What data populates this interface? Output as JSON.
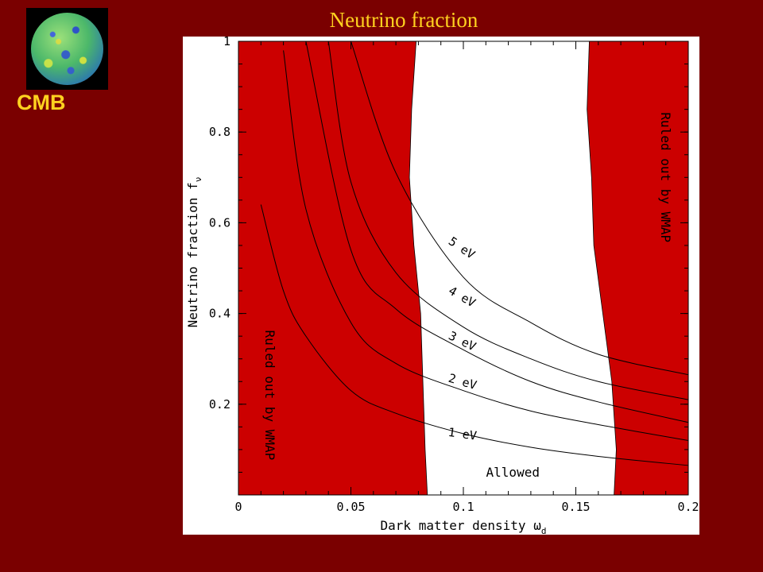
{
  "slide": {
    "title": "Neutrino fraction",
    "thumbnail_label": "CMB"
  },
  "colors": {
    "background": "#7a0000",
    "ruled_out_fill": "#cc0000",
    "title_text": "#ffd21f"
  },
  "chart_data": {
    "type": "line",
    "title": "",
    "xlabel": "Dark matter density ω",
    "xlabel_sub": "d",
    "ylabel": "Neutrino fraction f",
    "ylabel_sub": "ν",
    "xlim": [
      0,
      0.2
    ],
    "ylim": [
      0,
      1
    ],
    "x_ticks": [
      0,
      0.05,
      0.1,
      0.15,
      0.2
    ],
    "x_tick_labels": [
      "0",
      "0.05",
      "0.1",
      "0.15",
      "0.2"
    ],
    "y_ticks": [
      0.2,
      0.4,
      0.6,
      0.8,
      1
    ],
    "y_tick_labels": [
      "0.2",
      "0.4",
      "0.6",
      "0.8",
      "1"
    ],
    "grid": false,
    "series": [
      {
        "name": "1 eV",
        "x": [
          0.01,
          0.02,
          0.03,
          0.05,
          0.07,
          0.1,
          0.13,
          0.16,
          0.2
        ],
        "y": [
          0.64,
          0.45,
          0.35,
          0.23,
          0.18,
          0.135,
          0.105,
          0.085,
          0.065
        ]
      },
      {
        "name": "2 eV",
        "x": [
          0.02,
          0.03,
          0.05,
          0.07,
          0.1,
          0.13,
          0.16,
          0.2
        ],
        "y": [
          0.98,
          0.63,
          0.38,
          0.29,
          0.23,
          0.185,
          0.155,
          0.12
        ]
      },
      {
        "name": "3 eV",
        "x": [
          0.03,
          0.05,
          0.07,
          0.1,
          0.13,
          0.16,
          0.2
        ],
        "y": [
          1.0,
          0.54,
          0.41,
          0.32,
          0.25,
          0.205,
          0.16
        ]
      },
      {
        "name": "4 eV",
        "x": [
          0.04,
          0.05,
          0.07,
          0.1,
          0.13,
          0.16,
          0.2
        ],
        "y": [
          1.0,
          0.69,
          0.49,
          0.37,
          0.3,
          0.25,
          0.21
        ]
      },
      {
        "name": "5 eV",
        "x": [
          0.05,
          0.07,
          0.1,
          0.13,
          0.16,
          0.2
        ],
        "y": [
          1.0,
          0.71,
          0.48,
          0.38,
          0.31,
          0.265
        ]
      }
    ],
    "curve_labels": [
      {
        "text": "5 eV",
        "x": 0.093,
        "y": 0.555,
        "angle": 34
      },
      {
        "text": "4 eV",
        "x": 0.093,
        "y": 0.445,
        "angle": 30
      },
      {
        "text": "3 eV",
        "x": 0.093,
        "y": 0.345,
        "angle": 26
      },
      {
        "text": "2 eV",
        "x": 0.093,
        "y": 0.25,
        "angle": 16
      },
      {
        "text": "1 eV",
        "x": 0.093,
        "y": 0.13,
        "angle": 8
      }
    ],
    "regions": [
      {
        "label": "Ruled out by WMAP",
        "x_boundary": [
          0.079,
          0.077,
          0.076,
          0.078,
          0.081,
          0.082,
          0.083,
          0.084
        ],
        "y_boundary": [
          1.0,
          0.85,
          0.7,
          0.55,
          0.4,
          0.25,
          0.1,
          0.0
        ],
        "label_pos": {
          "x": 0.012,
          "y": 0.22,
          "angle": 90
        }
      },
      {
        "label": "Ruled out by WMAP",
        "x_boundary": [
          0.156,
          0.155,
          0.157,
          0.158,
          0.162,
          0.166,
          0.168,
          0.167
        ],
        "y_boundary": [
          1.0,
          0.85,
          0.7,
          0.55,
          0.4,
          0.25,
          0.1,
          0.0
        ],
        "label_pos": {
          "x": 0.188,
          "y": 0.7,
          "angle": 90
        }
      }
    ],
    "annotations": [
      {
        "text": "Allowed",
        "x": 0.122,
        "y": 0.04
      }
    ]
  }
}
